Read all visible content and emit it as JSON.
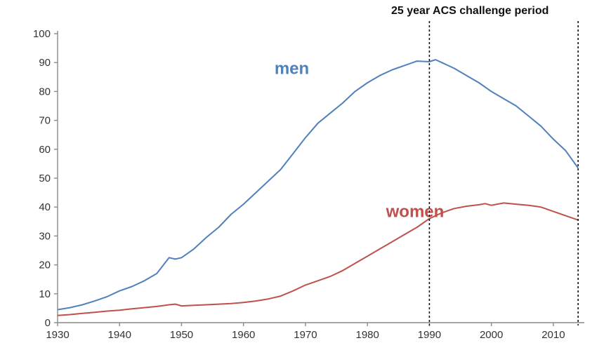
{
  "chart_data": {
    "type": "line",
    "title": "",
    "xlabel": "",
    "ylabel": "",
    "xlim": [
      1930,
      2015
    ],
    "ylim": [
      0,
      100
    ],
    "x_ticks": [
      1930,
      1940,
      1950,
      1960,
      1970,
      1980,
      1990,
      2000,
      2010
    ],
    "y_ticks": [
      0,
      10,
      20,
      30,
      40,
      50,
      60,
      70,
      80,
      90,
      100
    ],
    "grid": false,
    "series": [
      {
        "name": "men",
        "color": "#4f81bd",
        "label_at": [
          1965,
          86
        ],
        "points": [
          [
            1930,
            4.5
          ],
          [
            1932,
            5.2
          ],
          [
            1934,
            6.2
          ],
          [
            1936,
            7.5
          ],
          [
            1938,
            9
          ],
          [
            1940,
            11
          ],
          [
            1942,
            12.5
          ],
          [
            1944,
            14.5
          ],
          [
            1946,
            17
          ],
          [
            1948,
            22.5
          ],
          [
            1949,
            22
          ],
          [
            1950,
            22.5
          ],
          [
            1952,
            25.5
          ],
          [
            1954,
            29.5
          ],
          [
            1956,
            33
          ],
          [
            1958,
            37.5
          ],
          [
            1960,
            41
          ],
          [
            1962,
            45
          ],
          [
            1964,
            49
          ],
          [
            1966,
            53
          ],
          [
            1968,
            58.5
          ],
          [
            1970,
            64
          ],
          [
            1972,
            69
          ],
          [
            1974,
            72.5
          ],
          [
            1976,
            76
          ],
          [
            1978,
            80
          ],
          [
            1980,
            83
          ],
          [
            1982,
            85.5
          ],
          [
            1984,
            87.5
          ],
          [
            1986,
            89
          ],
          [
            1988,
            90.5
          ],
          [
            1990,
            90.3
          ],
          [
            1991,
            91
          ],
          [
            1992,
            90
          ],
          [
            1994,
            88
          ],
          [
            1996,
            85.5
          ],
          [
            1998,
            83
          ],
          [
            2000,
            80
          ],
          [
            2002,
            77.5
          ],
          [
            2004,
            75
          ],
          [
            2006,
            71.5
          ],
          [
            2008,
            68
          ],
          [
            2010,
            63.5
          ],
          [
            2012,
            59.5
          ],
          [
            2014,
            53.5
          ]
        ]
      },
      {
        "name": "women",
        "color": "#c0504d",
        "label_at": [
          1983,
          36.5
        ],
        "points": [
          [
            1930,
            2.5
          ],
          [
            1932,
            2.8
          ],
          [
            1934,
            3.2
          ],
          [
            1936,
            3.6
          ],
          [
            1938,
            4
          ],
          [
            1940,
            4.3
          ],
          [
            1942,
            4.8
          ],
          [
            1944,
            5.2
          ],
          [
            1946,
            5.6
          ],
          [
            1948,
            6.2
          ],
          [
            1949,
            6.4
          ],
          [
            1950,
            5.8
          ],
          [
            1952,
            6
          ],
          [
            1954,
            6.2
          ],
          [
            1956,
            6.4
          ],
          [
            1958,
            6.6
          ],
          [
            1960,
            7
          ],
          [
            1962,
            7.5
          ],
          [
            1964,
            8.2
          ],
          [
            1966,
            9.2
          ],
          [
            1968,
            11
          ],
          [
            1970,
            13
          ],
          [
            1972,
            14.5
          ],
          [
            1974,
            16
          ],
          [
            1976,
            18
          ],
          [
            1978,
            20.5
          ],
          [
            1980,
            23
          ],
          [
            1982,
            25.5
          ],
          [
            1984,
            28
          ],
          [
            1986,
            30.5
          ],
          [
            1988,
            33
          ],
          [
            1990,
            36
          ],
          [
            1992,
            38
          ],
          [
            1994,
            39.5
          ],
          [
            1996,
            40.3
          ],
          [
            1998,
            40.8
          ],
          [
            1999,
            41.2
          ],
          [
            2000,
            40.6
          ],
          [
            2002,
            41.4
          ],
          [
            2004,
            41
          ],
          [
            2006,
            40.6
          ],
          [
            2008,
            40
          ],
          [
            2010,
            38.5
          ],
          [
            2012,
            37
          ],
          [
            2014,
            35.5
          ]
        ]
      }
    ],
    "annotations": {
      "period_label": "25 year ACS challenge period",
      "period_start": 1990,
      "period_end": 2014
    }
  }
}
